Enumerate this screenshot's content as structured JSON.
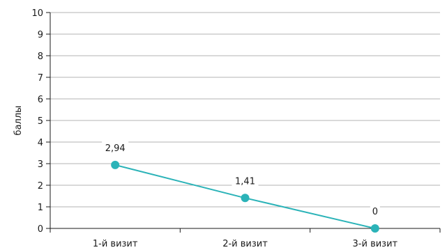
{
  "chart_data": {
    "type": "line",
    "title": "",
    "xlabel": "",
    "ylabel": "баллы",
    "categories": [
      "1-й визит",
      "2-й визит",
      "3-й визит"
    ],
    "series": [
      {
        "values": [
          2.94,
          1.41,
          0
        ],
        "data_labels": [
          "2,94",
          "1,41",
          "0"
        ],
        "color": "#2bb3b8"
      }
    ],
    "ylim": [
      0,
      10
    ],
    "yticks": [
      0,
      1,
      2,
      3,
      4,
      5,
      6,
      7,
      8,
      9,
      10
    ],
    "grid": true,
    "legend": "none"
  }
}
